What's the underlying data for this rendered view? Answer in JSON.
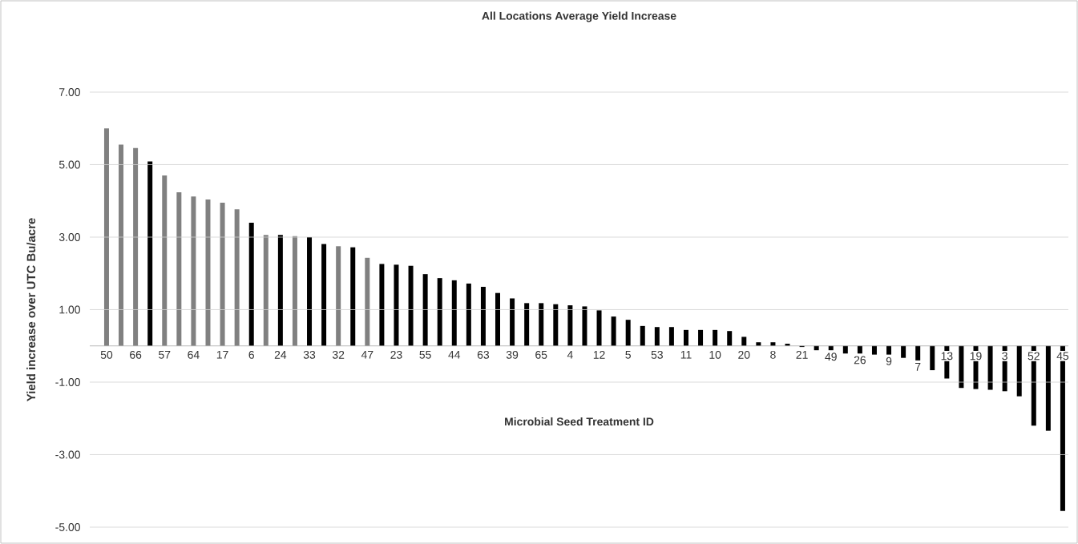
{
  "chart_data": {
    "type": "bar",
    "title": "All Locations Average Yield Increase",
    "xlabel": "Microbial Seed Treatment ID",
    "ylabel": "Yield increase over UTC Bu/acre",
    "categories": [
      "50",
      null,
      "66",
      null,
      "57",
      null,
      "64",
      null,
      "17",
      null,
      "6",
      null,
      "24",
      null,
      "33",
      null,
      "32",
      null,
      "47",
      null,
      "23",
      null,
      "55",
      null,
      "44",
      null,
      "63",
      null,
      "39",
      null,
      "65",
      null,
      "4",
      null,
      "12",
      null,
      "5",
      null,
      "53",
      null,
      "11",
      null,
      "10",
      null,
      "20",
      null,
      "8",
      null,
      "21",
      null,
      "49",
      null,
      "26",
      null,
      "9",
      null,
      "7",
      null,
      "13",
      null,
      "19",
      null,
      "3",
      null,
      "52",
      null,
      "45"
    ],
    "values": [
      6.0,
      5.55,
      5.46,
      5.09,
      4.7,
      4.24,
      4.12,
      4.04,
      3.95,
      3.77,
      3.4,
      3.06,
      3.06,
      3.03,
      3.0,
      2.81,
      2.75,
      2.72,
      2.43,
      2.26,
      2.24,
      2.21,
      1.98,
      1.87,
      1.81,
      1.72,
      1.63,
      1.46,
      1.31,
      1.18,
      1.18,
      1.15,
      1.12,
      1.09,
      0.98,
      0.81,
      0.72,
      0.55,
      0.52,
      0.52,
      0.44,
      0.44,
      0.44,
      0.41,
      0.25,
      0.1,
      0.1,
      0.06,
      -0.03,
      -0.12,
      -0.12,
      -0.21,
      -0.21,
      -0.24,
      -0.24,
      -0.33,
      -0.4,
      -0.67,
      -0.9,
      -1.16,
      -1.19,
      -1.21,
      -1.25,
      -1.39,
      -2.2,
      -2.34,
      -4.55
    ],
    "colors": [
      "#808080",
      "#808080",
      "#808080",
      "#000000",
      "#808080",
      "#808080",
      "#808080",
      "#808080",
      "#808080",
      "#808080",
      "#000000",
      "#808080",
      "#000000",
      "#808080",
      "#000000",
      "#000000",
      "#808080",
      "#000000",
      "#808080",
      "#000000",
      "#000000",
      "#000000",
      "#000000",
      "#000000",
      "#000000",
      "#000000",
      "#000000",
      "#000000",
      "#000000",
      "#000000",
      "#000000",
      "#000000",
      "#000000",
      "#000000",
      "#000000",
      "#000000",
      "#000000",
      "#000000",
      "#000000",
      "#000000",
      "#000000",
      "#000000",
      "#000000",
      "#000000",
      "#000000",
      "#000000",
      "#000000",
      "#000000",
      "#000000",
      "#000000",
      "#000000",
      "#000000",
      "#000000",
      "#000000",
      "#000000",
      "#000000",
      "#000000",
      "#000000",
      "#000000",
      "#000000",
      "#000000",
      "#000000",
      "#000000",
      "#000000",
      "#000000",
      "#000000",
      "#000000"
    ],
    "ylim": [
      -5,
      7
    ],
    "yticks": [
      {
        "value": 7,
        "label": "7.00"
      },
      {
        "value": 5,
        "label": "5.00"
      },
      {
        "value": 3,
        "label": "3.00"
      },
      {
        "value": 1,
        "label": "1.00"
      },
      {
        "value": -1,
        "label": "-1.00"
      },
      {
        "value": -3,
        "label": "-3.00"
      },
      {
        "value": -5,
        "label": "-5.00"
      }
    ],
    "grid": "y"
  }
}
